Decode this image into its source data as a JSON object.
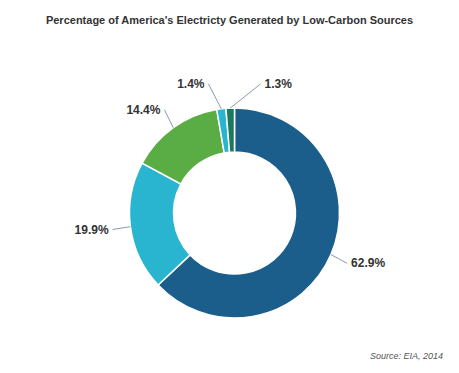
{
  "chart_data": {
    "type": "pie",
    "title": "Percentage of America's Electricty Generated by Low-Carbon Sources",
    "values": [
      62.9,
      19.9,
      14.4,
      1.4,
      1.3
    ],
    "value_labels": [
      "62.9%",
      "19.9%",
      "14.4%",
      "1.4%",
      "1.3%"
    ],
    "colors": [
      "#1b5e8c",
      "#29b5d0",
      "#5aac44",
      "#29b5d0",
      "#1b7a5e"
    ],
    "data_labels": true,
    "annotations": [
      "Source: EIA, 2014"
    ]
  }
}
